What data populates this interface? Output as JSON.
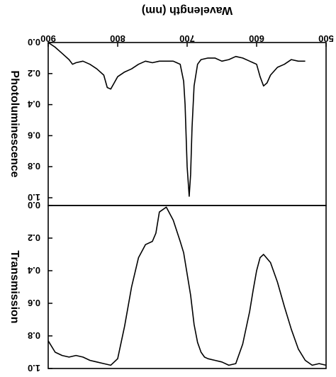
{
  "chart_data": {
    "type": "line",
    "orientation": "mirrored",
    "xlabel": "Wavelength (nm)",
    "x_ticks": [
      "500",
      "600",
      "700",
      "800",
      "900"
    ],
    "xlim": [
      500,
      900
    ],
    "x_reversed": true,
    "panels": [
      {
        "ylabel": "Photoluminescence",
        "y_ticks": [
          "0.0",
          "0.2",
          "0.4",
          "0.6",
          "0.8",
          "1.0"
        ],
        "ylim": [
          0,
          1.05
        ],
        "series": [
          {
            "x": [
              530,
              540,
              550,
              560,
              570,
              580,
              585,
              590,
              595,
              600,
              605,
              610,
              620,
              630,
              640,
              650,
              660,
              670,
              680,
              685,
              690,
              693,
              695,
              697,
              700,
              703,
              705,
              710,
              715,
              720,
              730,
              740,
              750,
              760,
              770,
              780,
              790,
              800,
              805,
              810,
              815,
              820,
              830,
              840,
              850,
              860,
              865,
              870,
              880,
              890,
              900
            ],
            "y": [
              0.12,
              0.12,
              0.11,
              0.14,
              0.16,
              0.21,
              0.26,
              0.28,
              0.22,
              0.14,
              0.13,
              0.12,
              0.1,
              0.09,
              0.11,
              0.12,
              0.1,
              0.1,
              0.11,
              0.14,
              0.28,
              0.55,
              0.85,
              0.99,
              0.8,
              0.4,
              0.25,
              0.14,
              0.13,
              0.12,
              0.12,
              0.12,
              0.13,
              0.12,
              0.14,
              0.17,
              0.19,
              0.22,
              0.26,
              0.3,
              0.29,
              0.21,
              0.17,
              0.14,
              0.12,
              0.13,
              0.14,
              0.11,
              0.07,
              0.03,
              0.0
            ]
          }
        ]
      },
      {
        "ylabel": "Transmission",
        "y_ticks": [
          "0.0",
          "0.2",
          "0.4",
          "0.6",
          "0.8",
          "1.0"
        ],
        "ylim": [
          0,
          1.0
        ],
        "series": [
          {
            "x": [
              500,
              510,
              520,
              530,
              540,
              550,
              560,
              570,
              580,
              590,
              595,
              600,
              605,
              610,
              620,
              630,
              640,
              650,
              660,
              670,
              675,
              680,
              685,
              690,
              695,
              700,
              705,
              710,
              720,
              730,
              740,
              745,
              750,
              760,
              770,
              780,
              790,
              800,
              810,
              820,
              830,
              840,
              850,
              860,
              870,
              880,
              890,
              900
            ],
            "y": [
              0.98,
              0.97,
              0.98,
              0.95,
              0.88,
              0.76,
              0.62,
              0.47,
              0.35,
              0.3,
              0.32,
              0.4,
              0.52,
              0.65,
              0.85,
              0.97,
              0.98,
              0.96,
              0.95,
              0.94,
              0.93,
              0.9,
              0.84,
              0.73,
              0.55,
              0.42,
              0.29,
              0.22,
              0.09,
              0.01,
              0.04,
              0.17,
              0.22,
              0.24,
              0.32,
              0.5,
              0.74,
              0.94,
              0.98,
              0.97,
              0.96,
              0.95,
              0.93,
              0.92,
              0.93,
              0.92,
              0.9,
              0.83
            ]
          }
        ]
      }
    ]
  }
}
